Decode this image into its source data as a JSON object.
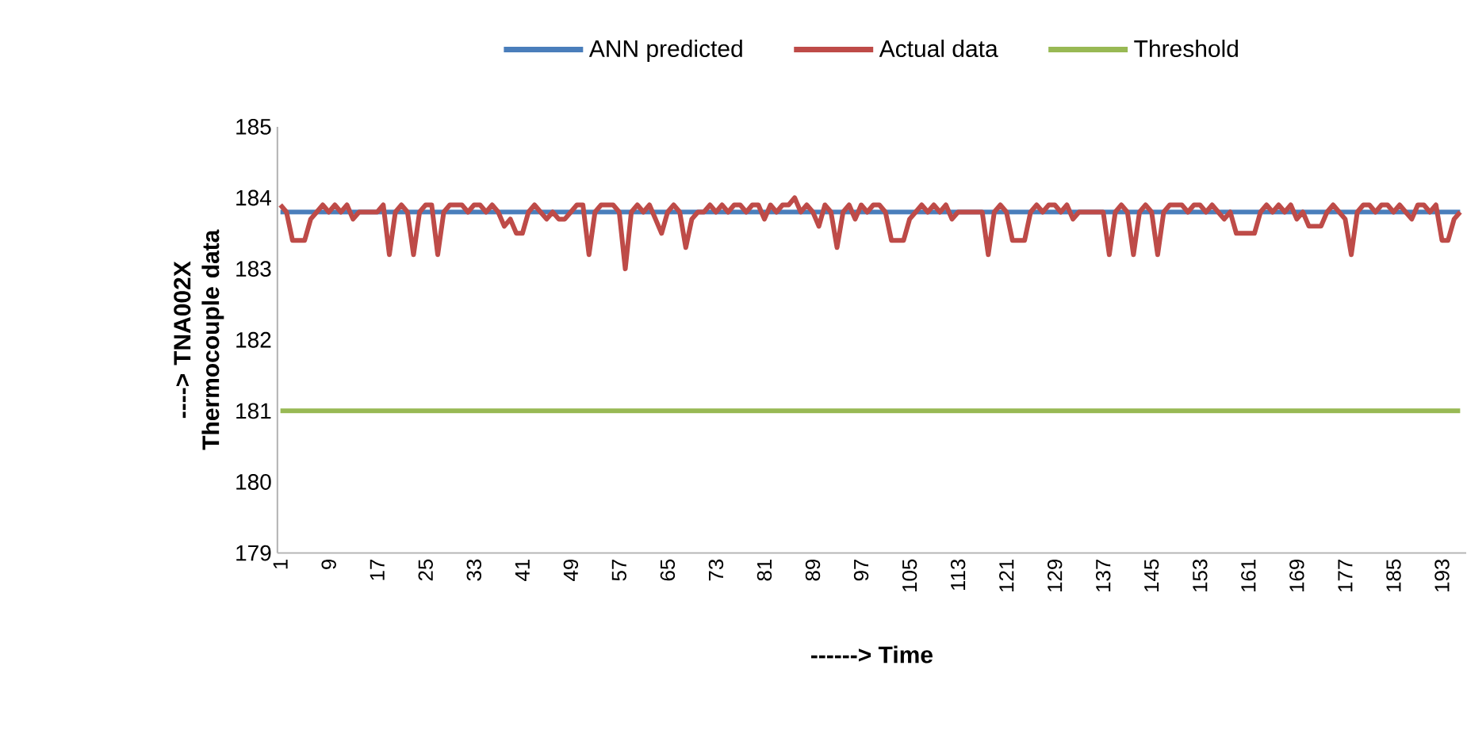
{
  "chart_data": {
    "type": "line",
    "xlabel": "------> Time",
    "ylabel": "----> TNA002X Thermocouple data",
    "xlim": [
      0.5,
      197
    ],
    "ylim": [
      179,
      185
    ],
    "xticks": [
      1,
      9,
      17,
      25,
      33,
      41,
      49,
      57,
      65,
      73,
      81,
      89,
      97,
      105,
      113,
      121,
      129,
      137,
      145,
      153,
      161,
      169,
      177,
      185,
      193
    ],
    "yticks": [
      179,
      180,
      181,
      182,
      183,
      184,
      185
    ],
    "grid": false,
    "legend": "top",
    "marker": "none",
    "line_style": "solid",
    "series": [
      {
        "name": "ANN predicted",
        "color": "#4a7ebb",
        "x": [
          1,
          196
        ],
        "values": [
          183.8,
          183.8
        ]
      },
      {
        "name": "Actual data",
        "color": "#be4b48",
        "x": [
          1,
          2,
          3,
          4,
          5,
          6,
          7,
          8,
          9,
          10,
          11,
          12,
          13,
          14,
          15,
          16,
          17,
          18,
          19,
          20,
          21,
          22,
          23,
          24,
          25,
          26,
          27,
          28,
          29,
          30,
          31,
          32,
          33,
          34,
          35,
          36,
          37,
          38,
          39,
          40,
          41,
          42,
          43,
          44,
          45,
          46,
          47,
          48,
          49,
          50,
          51,
          52,
          53,
          54,
          55,
          56,
          57,
          58,
          59,
          60,
          61,
          62,
          63,
          64,
          65,
          66,
          67,
          68,
          69,
          70,
          71,
          72,
          73,
          74,
          75,
          76,
          77,
          78,
          79,
          80,
          81,
          82,
          83,
          84,
          85,
          86,
          87,
          88,
          89,
          90,
          91,
          92,
          93,
          94,
          95,
          96,
          97,
          98,
          99,
          100,
          101,
          102,
          103,
          104,
          105,
          106,
          107,
          108,
          109,
          110,
          111,
          112,
          113,
          114,
          115,
          116,
          117,
          118,
          119,
          120,
          121,
          122,
          123,
          124,
          125,
          126,
          127,
          128,
          129,
          130,
          131,
          132,
          133,
          134,
          135,
          136,
          137,
          138,
          139,
          140,
          141,
          142,
          143,
          144,
          145,
          146,
          147,
          148,
          149,
          150,
          151,
          152,
          153,
          154,
          155,
          156,
          157,
          158,
          159,
          160,
          161,
          162,
          163,
          164,
          165,
          166,
          167,
          168,
          169,
          170,
          171,
          172,
          173,
          174,
          175,
          176,
          177,
          178,
          179,
          180,
          181,
          182,
          183,
          184,
          185,
          186,
          187,
          188,
          189,
          190,
          191,
          192,
          193,
          194,
          195,
          196
        ],
        "values": [
          183.9,
          183.8,
          183.4,
          183.4,
          183.4,
          183.7,
          183.8,
          183.9,
          183.8,
          183.9,
          183.8,
          183.9,
          183.7,
          183.8,
          183.8,
          183.8,
          183.8,
          183.9,
          183.2,
          183.8,
          183.9,
          183.8,
          183.2,
          183.8,
          183.9,
          183.9,
          183.2,
          183.8,
          183.9,
          183.9,
          183.9,
          183.8,
          183.9,
          183.9,
          183.8,
          183.9,
          183.8,
          183.6,
          183.7,
          183.5,
          183.5,
          183.8,
          183.9,
          183.8,
          183.7,
          183.8,
          183.7,
          183.7,
          183.8,
          183.9,
          183.9,
          183.2,
          183.8,
          183.9,
          183.9,
          183.9,
          183.8,
          183.0,
          183.8,
          183.9,
          183.8,
          183.9,
          183.7,
          183.5,
          183.8,
          183.9,
          183.8,
          183.3,
          183.7,
          183.8,
          183.8,
          183.9,
          183.8,
          183.9,
          183.8,
          183.9,
          183.9,
          183.8,
          183.9,
          183.9,
          183.7,
          183.9,
          183.8,
          183.9,
          183.9,
          184.0,
          183.8,
          183.9,
          183.8,
          183.6,
          183.9,
          183.8,
          183.3,
          183.8,
          183.9,
          183.7,
          183.9,
          183.8,
          183.9,
          183.9,
          183.8,
          183.4,
          183.4,
          183.4,
          183.7,
          183.8,
          183.9,
          183.8,
          183.9,
          183.8,
          183.9,
          183.7,
          183.8,
          183.8,
          183.8,
          183.8,
          183.8,
          183.2,
          183.8,
          183.9,
          183.8,
          183.4,
          183.4,
          183.4,
          183.8,
          183.9,
          183.8,
          183.9,
          183.9,
          183.8,
          183.9,
          183.7,
          183.8,
          183.8,
          183.8,
          183.8,
          183.8,
          183.2,
          183.8,
          183.9,
          183.8,
          183.2,
          183.8,
          183.9,
          183.8,
          183.2,
          183.8,
          183.9,
          183.9,
          183.9,
          183.8,
          183.9,
          183.9,
          183.8,
          183.9,
          183.8,
          183.7,
          183.8,
          183.5,
          183.5,
          183.5,
          183.5,
          183.8,
          183.9,
          183.8,
          183.9,
          183.8,
          183.9,
          183.7,
          183.8,
          183.6,
          183.6,
          183.6,
          183.8,
          183.9,
          183.8,
          183.7,
          183.2,
          183.8,
          183.9,
          183.9,
          183.8,
          183.9,
          183.9,
          183.8,
          183.9,
          183.8,
          183.7,
          183.9,
          183.9,
          183.8,
          183.9,
          183.4,
          183.4,
          183.7,
          183.8
        ]
      },
      {
        "name": "Threshold",
        "color": "#98b954",
        "x": [
          1,
          196
        ],
        "values": [
          181,
          181
        ]
      }
    ]
  }
}
